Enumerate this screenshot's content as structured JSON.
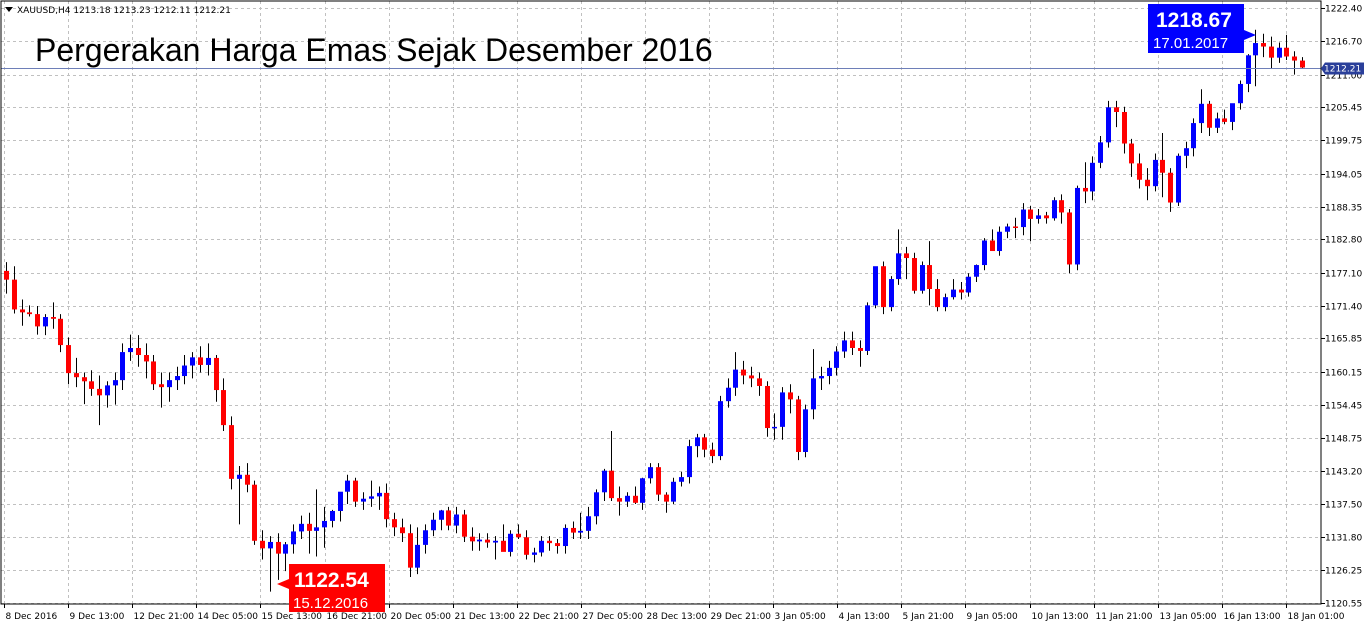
{
  "symbol_info": "XAUUSD,H4  1213.18 1213.23 1212.11 1212.21",
  "colors": {
    "bull": "#0000ff",
    "bear": "#ff0000",
    "grid": "#c0c0c0",
    "axis": "#000000",
    "current_line": "#6e7fb8"
  },
  "annotations": {
    "high": {
      "value": "1218.67",
      "date": "17.01.2017",
      "color": "#0000ff"
    },
    "low": {
      "value": "1122.54",
      "date": "15.12.2016",
      "color": "#ff0000"
    },
    "current_price": "1212.21"
  },
  "chart_data": {
    "type": "candlestick",
    "title": "Pergerakan Harga Emas Sejak Desember 2016",
    "y_ticks": [
      1222.4,
      1216.7,
      1211.0,
      1205.45,
      1199.75,
      1194.05,
      1188.35,
      1182.8,
      1177.1,
      1171.4,
      1165.85,
      1160.15,
      1154.45,
      1148.75,
      1143.2,
      1137.5,
      1131.8,
      1126.25,
      1120.55
    ],
    "x_ticks": [
      "8 Dec 2016",
      "9 Dec 13:00",
      "12 Dec 21:00",
      "14 Dec 05:00",
      "15 Dec 13:00",
      "16 Dec 21:00",
      "20 Dec 05:00",
      "21 Dec 13:00",
      "22 Dec 21:00",
      "27 Dec 05:00",
      "28 Dec 13:00",
      "29 Dec 21:00",
      "3 Jan 05:00",
      "4 Jan 13:00",
      "5 Jan 21:00",
      "9 Jan 05:00",
      "10 Jan 13:00",
      "11 Jan 21:00",
      "13 Jan 05:00",
      "16 Jan 13:00",
      "18 Jan 01:00"
    ],
    "ylim": [
      1120.0,
      1224.0
    ],
    "grid": true,
    "candles": [
      {
        "o": 1177.4,
        "h": 1178.9,
        "l": 1173.5,
        "c": 1175.9
      },
      {
        "o": 1175.9,
        "h": 1178.2,
        "l": 1170.1,
        "c": 1170.8
      },
      {
        "o": 1170.8,
        "h": 1172.5,
        "l": 1168.0,
        "c": 1170.3
      },
      {
        "o": 1170.3,
        "h": 1171.5,
        "l": 1169.6,
        "c": 1170.0
      },
      {
        "o": 1170.0,
        "h": 1171.4,
        "l": 1166.5,
        "c": 1167.9
      },
      {
        "o": 1167.9,
        "h": 1170.0,
        "l": 1166.4,
        "c": 1169.5
      },
      {
        "o": 1169.5,
        "h": 1172.0,
        "l": 1167.5,
        "c": 1169.2
      },
      {
        "o": 1169.2,
        "h": 1170.0,
        "l": 1163.5,
        "c": 1164.7
      },
      {
        "o": 1164.7,
        "h": 1166.0,
        "l": 1158.0,
        "c": 1159.9
      },
      {
        "o": 1159.9,
        "h": 1162.5,
        "l": 1157.5,
        "c": 1159.2
      },
      {
        "o": 1159.2,
        "h": 1160.0,
        "l": 1154.6,
        "c": 1158.5
      },
      {
        "o": 1158.5,
        "h": 1160.4,
        "l": 1156.0,
        "c": 1157.2
      },
      {
        "o": 1157.2,
        "h": 1159.5,
        "l": 1151.0,
        "c": 1156.1
      },
      {
        "o": 1156.1,
        "h": 1158.5,
        "l": 1154.0,
        "c": 1157.8
      },
      {
        "o": 1157.8,
        "h": 1160.0,
        "l": 1154.5,
        "c": 1158.7
      },
      {
        "o": 1158.7,
        "h": 1165.0,
        "l": 1157.0,
        "c": 1163.5
      },
      {
        "o": 1163.5,
        "h": 1166.5,
        "l": 1162.0,
        "c": 1164.2
      },
      {
        "o": 1164.2,
        "h": 1166.4,
        "l": 1161.0,
        "c": 1163.0
      },
      {
        "o": 1163.0,
        "h": 1165.0,
        "l": 1159.0,
        "c": 1161.9
      },
      {
        "o": 1161.9,
        "h": 1163.0,
        "l": 1157.0,
        "c": 1158.0
      },
      {
        "o": 1158.0,
        "h": 1160.0,
        "l": 1154.0,
        "c": 1157.5
      },
      {
        "o": 1157.5,
        "h": 1160.0,
        "l": 1155.0,
        "c": 1158.7
      },
      {
        "o": 1158.7,
        "h": 1161.0,
        "l": 1157.0,
        "c": 1159.4
      },
      {
        "o": 1159.4,
        "h": 1163.0,
        "l": 1158.0,
        "c": 1161.2
      },
      {
        "o": 1161.2,
        "h": 1163.5,
        "l": 1159.0,
        "c": 1162.6
      },
      {
        "o": 1162.6,
        "h": 1164.5,
        "l": 1160.0,
        "c": 1161.3
      },
      {
        "o": 1161.3,
        "h": 1165.0,
        "l": 1159.5,
        "c": 1162.5
      },
      {
        "o": 1162.5,
        "h": 1163.0,
        "l": 1155.0,
        "c": 1157.0
      },
      {
        "o": 1157.0,
        "h": 1159.0,
        "l": 1150.0,
        "c": 1151.0
      },
      {
        "o": 1151.0,
        "h": 1152.5,
        "l": 1140.0,
        "c": 1141.8
      },
      {
        "o": 1141.8,
        "h": 1144.0,
        "l": 1134.0,
        "c": 1142.5
      },
      {
        "o": 1142.5,
        "h": 1144.5,
        "l": 1139.5,
        "c": 1140.8
      },
      {
        "o": 1140.8,
        "h": 1141.5,
        "l": 1130.5,
        "c": 1131.2
      },
      {
        "o": 1131.2,
        "h": 1133.0,
        "l": 1128.0,
        "c": 1129.9
      },
      {
        "o": 1129.9,
        "h": 1132.0,
        "l": 1122.5,
        "c": 1131.0
      },
      {
        "o": 1131.0,
        "h": 1132.5,
        "l": 1124.5,
        "c": 1129.0
      },
      {
        "o": 1129.0,
        "h": 1131.0,
        "l": 1126.0,
        "c": 1130.6
      },
      {
        "o": 1130.6,
        "h": 1134.0,
        "l": 1129.0,
        "c": 1132.8
      },
      {
        "o": 1132.8,
        "h": 1135.5,
        "l": 1131.5,
        "c": 1134.1
      },
      {
        "o": 1134.1,
        "h": 1136.0,
        "l": 1129.0,
        "c": 1132.9
      },
      {
        "o": 1132.9,
        "h": 1140.0,
        "l": 1128.5,
        "c": 1133.5
      },
      {
        "o": 1133.5,
        "h": 1137.0,
        "l": 1130.0,
        "c": 1134.6
      },
      {
        "o": 1134.6,
        "h": 1136.5,
        "l": 1133.5,
        "c": 1136.3
      },
      {
        "o": 1136.3,
        "h": 1139.0,
        "l": 1134.5,
        "c": 1139.6
      },
      {
        "o": 1139.6,
        "h": 1142.5,
        "l": 1137.5,
        "c": 1141.5
      },
      {
        "o": 1141.5,
        "h": 1142.0,
        "l": 1137.0,
        "c": 1137.9
      },
      {
        "o": 1137.9,
        "h": 1139.5,
        "l": 1136.5,
        "c": 1138.4
      },
      {
        "o": 1138.4,
        "h": 1141.5,
        "l": 1137.0,
        "c": 1138.8
      },
      {
        "o": 1138.8,
        "h": 1140.5,
        "l": 1136.5,
        "c": 1139.4
      },
      {
        "o": 1139.4,
        "h": 1141.0,
        "l": 1133.5,
        "c": 1134.9
      },
      {
        "o": 1134.9,
        "h": 1136.0,
        "l": 1132.0,
        "c": 1133.5
      },
      {
        "o": 1133.5,
        "h": 1135.0,
        "l": 1131.0,
        "c": 1132.5
      },
      {
        "o": 1132.5,
        "h": 1134.0,
        "l": 1125.0,
        "c": 1126.6
      },
      {
        "o": 1126.6,
        "h": 1133.5,
        "l": 1125.5,
        "c": 1130.5
      },
      {
        "o": 1130.5,
        "h": 1134.0,
        "l": 1129.0,
        "c": 1133.0
      },
      {
        "o": 1133.0,
        "h": 1136.0,
        "l": 1132.0,
        "c": 1134.8
      },
      {
        "o": 1134.8,
        "h": 1136.5,
        "l": 1133.0,
        "c": 1136.4
      },
      {
        "o": 1136.4,
        "h": 1137.0,
        "l": 1133.0,
        "c": 1133.8
      },
      {
        "o": 1133.8,
        "h": 1137.0,
        "l": 1132.5,
        "c": 1135.7
      },
      {
        "o": 1135.7,
        "h": 1136.5,
        "l": 1131.0,
        "c": 1131.9
      },
      {
        "o": 1131.9,
        "h": 1133.5,
        "l": 1129.5,
        "c": 1131.1
      },
      {
        "o": 1131.1,
        "h": 1132.5,
        "l": 1129.5,
        "c": 1131.4
      },
      {
        "o": 1131.4,
        "h": 1132.5,
        "l": 1130.0,
        "c": 1130.9
      },
      {
        "o": 1130.9,
        "h": 1132.0,
        "l": 1128.0,
        "c": 1131.2
      },
      {
        "o": 1131.2,
        "h": 1134.0,
        "l": 1129.5,
        "c": 1129.3
      },
      {
        "o": 1129.3,
        "h": 1133.0,
        "l": 1128.5,
        "c": 1132.4
      },
      {
        "o": 1132.4,
        "h": 1134.0,
        "l": 1131.5,
        "c": 1131.8
      },
      {
        "o": 1131.8,
        "h": 1133.0,
        "l": 1128.0,
        "c": 1128.8
      },
      {
        "o": 1128.8,
        "h": 1130.0,
        "l": 1127.5,
        "c": 1129.2
      },
      {
        "o": 1129.2,
        "h": 1132.0,
        "l": 1128.5,
        "c": 1131.2
      },
      {
        "o": 1131.2,
        "h": 1132.0,
        "l": 1129.5,
        "c": 1130.8
      },
      {
        "o": 1130.8,
        "h": 1131.5,
        "l": 1129.0,
        "c": 1130.3
      },
      {
        "o": 1130.3,
        "h": 1134.0,
        "l": 1129.0,
        "c": 1133.4
      },
      {
        "o": 1133.4,
        "h": 1134.5,
        "l": 1131.5,
        "c": 1132.6
      },
      {
        "o": 1132.6,
        "h": 1136.0,
        "l": 1131.5,
        "c": 1132.9
      },
      {
        "o": 1132.9,
        "h": 1137.0,
        "l": 1131.5,
        "c": 1135.4
      },
      {
        "o": 1135.4,
        "h": 1140.0,
        "l": 1134.0,
        "c": 1139.5
      },
      {
        "o": 1139.5,
        "h": 1143.5,
        "l": 1138.0,
        "c": 1143.2
      },
      {
        "o": 1143.2,
        "h": 1150.0,
        "l": 1138.0,
        "c": 1138.5
      },
      {
        "o": 1138.5,
        "h": 1140.5,
        "l": 1135.5,
        "c": 1137.9
      },
      {
        "o": 1137.9,
        "h": 1139.5,
        "l": 1137.0,
        "c": 1138.9
      },
      {
        "o": 1138.9,
        "h": 1140.5,
        "l": 1137.5,
        "c": 1137.7
      },
      {
        "o": 1137.7,
        "h": 1142.0,
        "l": 1136.5,
        "c": 1141.9
      },
      {
        "o": 1141.9,
        "h": 1144.5,
        "l": 1141.0,
        "c": 1143.8
      },
      {
        "o": 1143.8,
        "h": 1144.5,
        "l": 1138.0,
        "c": 1139.1
      },
      {
        "o": 1139.1,
        "h": 1139.5,
        "l": 1136.0,
        "c": 1137.9
      },
      {
        "o": 1137.9,
        "h": 1142.0,
        "l": 1137.5,
        "c": 1141.3
      },
      {
        "o": 1141.3,
        "h": 1143.0,
        "l": 1140.5,
        "c": 1142.1
      },
      {
        "o": 1142.1,
        "h": 1148.5,
        "l": 1141.0,
        "c": 1147.4
      },
      {
        "o": 1147.4,
        "h": 1149.5,
        "l": 1145.5,
        "c": 1148.9
      },
      {
        "o": 1148.9,
        "h": 1149.5,
        "l": 1145.5,
        "c": 1146.8
      },
      {
        "o": 1146.8,
        "h": 1148.0,
        "l": 1144.5,
        "c": 1145.7
      },
      {
        "o": 1145.7,
        "h": 1156.0,
        "l": 1145.0,
        "c": 1155.1
      },
      {
        "o": 1155.1,
        "h": 1159.0,
        "l": 1154.0,
        "c": 1157.4
      },
      {
        "o": 1157.4,
        "h": 1163.5,
        "l": 1156.0,
        "c": 1160.5
      },
      {
        "o": 1160.5,
        "h": 1162.0,
        "l": 1158.0,
        "c": 1159.5
      },
      {
        "o": 1159.5,
        "h": 1161.0,
        "l": 1157.5,
        "c": 1159.0
      },
      {
        "o": 1159.0,
        "h": 1160.0,
        "l": 1156.0,
        "c": 1157.7
      },
      {
        "o": 1157.7,
        "h": 1158.5,
        "l": 1149.0,
        "c": 1150.5
      },
      {
        "o": 1150.5,
        "h": 1153.0,
        "l": 1148.5,
        "c": 1150.7
      },
      {
        "o": 1150.7,
        "h": 1157.5,
        "l": 1148.5,
        "c": 1156.6
      },
      {
        "o": 1156.6,
        "h": 1158.0,
        "l": 1153.0,
        "c": 1155.4
      },
      {
        "o": 1155.4,
        "h": 1156.0,
        "l": 1145.0,
        "c": 1146.4
      },
      {
        "o": 1146.4,
        "h": 1154.5,
        "l": 1145.5,
        "c": 1153.7
      },
      {
        "o": 1153.7,
        "h": 1164.0,
        "l": 1152.0,
        "c": 1159.0
      },
      {
        "o": 1159.0,
        "h": 1161.0,
        "l": 1157.0,
        "c": 1159.4
      },
      {
        "o": 1159.4,
        "h": 1162.0,
        "l": 1158.0,
        "c": 1160.8
      },
      {
        "o": 1160.8,
        "h": 1164.5,
        "l": 1159.5,
        "c": 1163.6
      },
      {
        "o": 1163.6,
        "h": 1167.0,
        "l": 1162.5,
        "c": 1165.5
      },
      {
        "o": 1165.5,
        "h": 1167.0,
        "l": 1163.0,
        "c": 1164.2
      },
      {
        "o": 1164.2,
        "h": 1165.5,
        "l": 1161.0,
        "c": 1163.7
      },
      {
        "o": 1163.7,
        "h": 1172.0,
        "l": 1163.0,
        "c": 1171.5
      },
      {
        "o": 1171.5,
        "h": 1178.0,
        "l": 1171.0,
        "c": 1178.2
      },
      {
        "o": 1178.2,
        "h": 1179.0,
        "l": 1170.0,
        "c": 1171.2
      },
      {
        "o": 1171.2,
        "h": 1176.5,
        "l": 1170.5,
        "c": 1176.0
      },
      {
        "o": 1176.0,
        "h": 1184.5,
        "l": 1175.0,
        "c": 1180.4
      },
      {
        "o": 1180.4,
        "h": 1181.5,
        "l": 1176.0,
        "c": 1179.6
      },
      {
        "o": 1179.6,
        "h": 1180.5,
        "l": 1173.5,
        "c": 1174.0
      },
      {
        "o": 1174.0,
        "h": 1179.0,
        "l": 1173.5,
        "c": 1178.4
      },
      {
        "o": 1178.4,
        "h": 1182.5,
        "l": 1171.5,
        "c": 1174.3
      },
      {
        "o": 1174.3,
        "h": 1176.0,
        "l": 1170.5,
        "c": 1171.2
      },
      {
        "o": 1171.2,
        "h": 1173.5,
        "l": 1170.5,
        "c": 1172.9
      },
      {
        "o": 1172.9,
        "h": 1176.0,
        "l": 1172.5,
        "c": 1174.2
      },
      {
        "o": 1174.2,
        "h": 1175.5,
        "l": 1172.5,
        "c": 1173.7
      },
      {
        "o": 1173.7,
        "h": 1177.0,
        "l": 1173.0,
        "c": 1176.4
      },
      {
        "o": 1176.4,
        "h": 1178.5,
        "l": 1175.5,
        "c": 1178.4
      },
      {
        "o": 1178.4,
        "h": 1183.0,
        "l": 1177.5,
        "c": 1182.6
      },
      {
        "o": 1182.6,
        "h": 1184.5,
        "l": 1181.5,
        "c": 1180.8
      },
      {
        "o": 1180.8,
        "h": 1185.0,
        "l": 1180.0,
        "c": 1184.1
      },
      {
        "o": 1184.1,
        "h": 1185.5,
        "l": 1183.0,
        "c": 1185.0
      },
      {
        "o": 1185.0,
        "h": 1186.5,
        "l": 1183.0,
        "c": 1184.9
      },
      {
        "o": 1184.9,
        "h": 1189.0,
        "l": 1183.5,
        "c": 1187.9
      },
      {
        "o": 1187.9,
        "h": 1188.5,
        "l": 1182.5,
        "c": 1186.3
      },
      {
        "o": 1186.3,
        "h": 1188.0,
        "l": 1185.5,
        "c": 1186.9
      },
      {
        "o": 1186.9,
        "h": 1187.5,
        "l": 1185.5,
        "c": 1186.4
      },
      {
        "o": 1186.4,
        "h": 1190.0,
        "l": 1186.0,
        "c": 1189.5
      },
      {
        "o": 1189.5,
        "h": 1190.5,
        "l": 1185.5,
        "c": 1187.4
      },
      {
        "o": 1187.4,
        "h": 1188.0,
        "l": 1177.0,
        "c": 1178.5
      },
      {
        "o": 1178.5,
        "h": 1192.0,
        "l": 1177.5,
        "c": 1191.6
      },
      {
        "o": 1191.6,
        "h": 1196.0,
        "l": 1189.0,
        "c": 1191.0
      },
      {
        "o": 1191.0,
        "h": 1197.0,
        "l": 1189.5,
        "c": 1195.9
      },
      {
        "o": 1195.9,
        "h": 1200.5,
        "l": 1195.0,
        "c": 1199.4
      },
      {
        "o": 1199.4,
        "h": 1206.5,
        "l": 1198.5,
        "c": 1205.4
      },
      {
        "o": 1205.4,
        "h": 1206.5,
        "l": 1202.0,
        "c": 1204.6
      },
      {
        "o": 1204.6,
        "h": 1205.5,
        "l": 1197.5,
        "c": 1199.2
      },
      {
        "o": 1199.2,
        "h": 1200.0,
        "l": 1193.5,
        "c": 1195.8
      },
      {
        "o": 1195.8,
        "h": 1197.5,
        "l": 1191.5,
        "c": 1193.0
      },
      {
        "o": 1193.0,
        "h": 1195.0,
        "l": 1189.5,
        "c": 1191.9
      },
      {
        "o": 1191.9,
        "h": 1197.5,
        "l": 1191.0,
        "c": 1196.4
      },
      {
        "o": 1196.4,
        "h": 1201.0,
        "l": 1190.0,
        "c": 1194.2
      },
      {
        "o": 1194.2,
        "h": 1195.0,
        "l": 1187.5,
        "c": 1189.1
      },
      {
        "o": 1189.1,
        "h": 1197.5,
        "l": 1188.5,
        "c": 1197.1
      },
      {
        "o": 1197.1,
        "h": 1199.5,
        "l": 1195.0,
        "c": 1198.4
      },
      {
        "o": 1198.4,
        "h": 1203.5,
        "l": 1197.0,
        "c": 1202.7
      },
      {
        "o": 1202.7,
        "h": 1208.5,
        "l": 1201.0,
        "c": 1206.0
      },
      {
        "o": 1206.0,
        "h": 1206.5,
        "l": 1200.5,
        "c": 1201.9
      },
      {
        "o": 1201.9,
        "h": 1204.5,
        "l": 1201.0,
        "c": 1203.5
      },
      {
        "o": 1203.5,
        "h": 1205.0,
        "l": 1202.5,
        "c": 1202.9
      },
      {
        "o": 1202.9,
        "h": 1205.5,
        "l": 1201.5,
        "c": 1206.1
      },
      {
        "o": 1206.1,
        "h": 1210.0,
        "l": 1205.0,
        "c": 1209.4
      },
      {
        "o": 1209.4,
        "h": 1214.5,
        "l": 1208.0,
        "c": 1214.3
      },
      {
        "o": 1214.3,
        "h": 1218.67,
        "l": 1209.0,
        "c": 1216.4
      },
      {
        "o": 1216.4,
        "h": 1218.0,
        "l": 1214.0,
        "c": 1215.8
      },
      {
        "o": 1215.8,
        "h": 1217.5,
        "l": 1212.0,
        "c": 1213.9
      },
      {
        "o": 1213.9,
        "h": 1216.5,
        "l": 1213.0,
        "c": 1215.6
      },
      {
        "o": 1215.6,
        "h": 1217.8,
        "l": 1213.5,
        "c": 1214.1
      },
      {
        "o": 1214.1,
        "h": 1215.0,
        "l": 1211.0,
        "c": 1213.4
      },
      {
        "o": 1213.4,
        "h": 1214.0,
        "l": 1212.0,
        "c": 1212.21
      }
    ]
  }
}
